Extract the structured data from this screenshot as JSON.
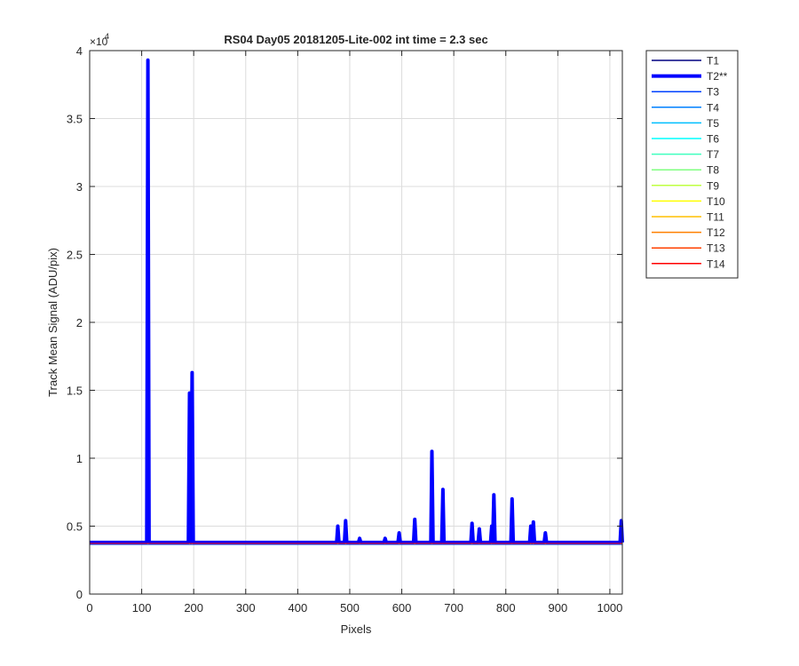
{
  "chart_data": {
    "type": "line",
    "title": "RS04 Day05 20181205-Lite-002 int time = 2.3 sec",
    "xlabel": "Pixels",
    "ylabel": "Track Mean Signal (ADU/pix)",
    "y_exponent_label": "×10",
    "y_exponent_power": "4",
    "xlim": [
      0,
      1024
    ],
    "ylim": [
      0,
      40000
    ],
    "x_ticks": [
      0,
      100,
      200,
      300,
      400,
      500,
      600,
      700,
      800,
      900,
      1000
    ],
    "x_tick_labels": [
      "0",
      "100",
      "200",
      "300",
      "400",
      "500",
      "600",
      "700",
      "800",
      "900",
      "1000"
    ],
    "y_ticks": [
      0,
      5000,
      10000,
      15000,
      20000,
      25000,
      30000,
      35000,
      40000
    ],
    "y_tick_labels": [
      "0",
      "0.5",
      "1",
      "1.5",
      "2",
      "2.5",
      "3",
      "3.5",
      "4"
    ],
    "grid": true,
    "legend_position": "outside-right",
    "baseline": 3750,
    "series": [
      {
        "name": "T1",
        "color": "#000080",
        "highlight": false
      },
      {
        "name": "T2**",
        "color": "#0000ff",
        "highlight": true,
        "peaks": [
          {
            "x": 112,
            "y": 39300
          },
          {
            "x": 192,
            "y": 14800
          },
          {
            "x": 197,
            "y": 16300
          },
          {
            "x": 477,
            "y": 5000
          },
          {
            "x": 492,
            "y": 5400
          },
          {
            "x": 519,
            "y": 4100
          },
          {
            "x": 568,
            "y": 4100
          },
          {
            "x": 595,
            "y": 4500
          },
          {
            "x": 625,
            "y": 5500
          },
          {
            "x": 658,
            "y": 10500
          },
          {
            "x": 679,
            "y": 7700
          },
          {
            "x": 735,
            "y": 5200
          },
          {
            "x": 749,
            "y": 4800
          },
          {
            "x": 773,
            "y": 5000
          },
          {
            "x": 777,
            "y": 7300
          },
          {
            "x": 812,
            "y": 7000
          },
          {
            "x": 848,
            "y": 5000
          },
          {
            "x": 853,
            "y": 5300
          },
          {
            "x": 876,
            "y": 4500
          },
          {
            "x": 1022,
            "y": 5400
          }
        ]
      },
      {
        "name": "T3",
        "color": "#0040ff",
        "highlight": false
      },
      {
        "name": "T4",
        "color": "#0080ff",
        "highlight": false
      },
      {
        "name": "T5",
        "color": "#00bfff",
        "highlight": false
      },
      {
        "name": "T6",
        "color": "#00ffff",
        "highlight": false
      },
      {
        "name": "T7",
        "color": "#40ffbf",
        "highlight": false
      },
      {
        "name": "T8",
        "color": "#80ff80",
        "highlight": false
      },
      {
        "name": "T9",
        "color": "#bfff40",
        "highlight": false
      },
      {
        "name": "T10",
        "color": "#ffff00",
        "highlight": false
      },
      {
        "name": "T11",
        "color": "#ffbf00",
        "highlight": false
      },
      {
        "name": "T12",
        "color": "#ff8000",
        "highlight": false
      },
      {
        "name": "T13",
        "color": "#ff4000",
        "highlight": false
      },
      {
        "name": "T14",
        "color": "#ff0000",
        "highlight": false
      }
    ]
  }
}
